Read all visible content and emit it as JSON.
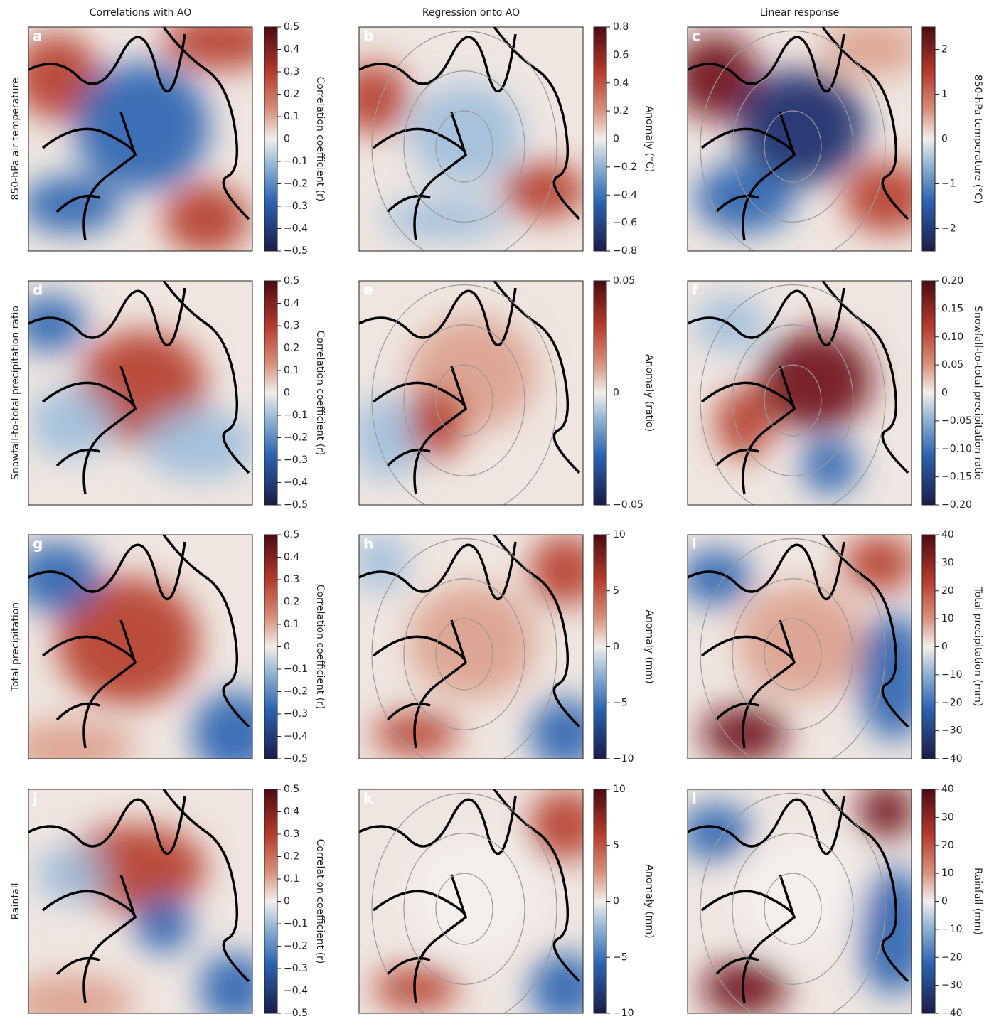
{
  "column_titles": [
    "Correlations with AO",
    "Regression onto AO",
    "Linear response"
  ],
  "row_labels": [
    "850-hPa air temperature",
    "Snowfall-to-total precipitation ratio",
    "Total precipitation",
    "Rainfall"
  ],
  "panels": [
    {
      "letter": "a",
      "colorbar": {
        "label": "Correlation coefficient (r)",
        "lim": [
          -0.5,
          0.5
        ],
        "ticks": [
          {
            "value": -0.5,
            "label": "−0.5"
          },
          {
            "value": -0.4,
            "label": "−0.4"
          },
          {
            "value": -0.3,
            "label": "−0.3"
          },
          {
            "value": -0.2,
            "label": "−0.2"
          },
          {
            "value": -0.1,
            "label": "−0.1"
          },
          0,
          0.1,
          0.2,
          0.3,
          0.4,
          0.5
        ]
      }
    },
    {
      "letter": "b",
      "colorbar": {
        "label": "Anomaly (°C)",
        "lim": [
          -0.8,
          0.8
        ],
        "ticks": [
          {
            "value": -0.8,
            "label": "−0.8"
          },
          {
            "value": -0.6,
            "label": "−0.6"
          },
          {
            "value": -0.4,
            "label": "−0.4"
          },
          {
            "value": -0.2,
            "label": "−0.2"
          },
          0,
          0.2,
          0.4,
          0.6,
          0.8
        ]
      }
    },
    {
      "letter": "c",
      "colorbar": {
        "label": "850-hPa temperature (°C)",
        "lim": [
          -2.5,
          2.5
        ],
        "ticks": [
          {
            "value": -2,
            "label": "−2"
          },
          {
            "value": -1,
            "label": "−1"
          },
          0,
          1,
          2
        ]
      }
    },
    {
      "letter": "d",
      "colorbar": {
        "label": "Correlation coefficient (r)",
        "lim": [
          -0.5,
          0.5
        ],
        "ticks": [
          {
            "value": -0.5,
            "label": "−0.5"
          },
          {
            "value": -0.4,
            "label": "−0.4"
          },
          {
            "value": -0.3,
            "label": "−0.3"
          },
          {
            "value": -0.2,
            "label": "−0.2"
          },
          {
            "value": -0.1,
            "label": "−0.1"
          },
          0,
          0.1,
          0.2,
          0.3,
          0.4,
          0.5
        ]
      }
    },
    {
      "letter": "e",
      "colorbar": {
        "label": "Anomaly (ratio)",
        "lim": [
          -0.05,
          0.05
        ],
        "ticks": [
          {
            "value": -0.05,
            "label": "−0.05"
          },
          0,
          0.05
        ]
      }
    },
    {
      "letter": "f",
      "colorbar": {
        "label": "Snowfall-to-total precipitation ratio",
        "lim": [
          -0.2,
          0.2
        ],
        "ticks": [
          {
            "value": -0.2,
            "label": "−0.20"
          },
          {
            "value": -0.15,
            "label": "−0.15"
          },
          {
            "value": -0.1,
            "label": "−0.10"
          },
          {
            "value": -0.05,
            "label": "−0.05"
          },
          0,
          0.05,
          {
            "value": 0.1,
            "label": "0.10"
          },
          0.15,
          {
            "value": 0.2,
            "label": "0.20"
          }
        ]
      }
    },
    {
      "letter": "g",
      "colorbar": {
        "label": "Correlation coefficient (r)",
        "lim": [
          -0.5,
          0.5
        ],
        "ticks": [
          {
            "value": -0.5,
            "label": "−0.5"
          },
          {
            "value": -0.4,
            "label": "−0.4"
          },
          {
            "value": -0.3,
            "label": "−0.3"
          },
          {
            "value": -0.2,
            "label": "−0.2"
          },
          {
            "value": -0.1,
            "label": "−0.1"
          },
          0,
          0.1,
          0.2,
          0.3,
          0.4,
          0.5
        ]
      }
    },
    {
      "letter": "h",
      "colorbar": {
        "label": "Anomaly (mm)",
        "lim": [
          -10,
          10
        ],
        "ticks": [
          {
            "value": -10,
            "label": "−10"
          },
          {
            "value": -5,
            "label": "−5"
          },
          0,
          5,
          10
        ]
      }
    },
    {
      "letter": "i",
      "colorbar": {
        "label": "Total precipitation (mm)",
        "lim": [
          -40,
          40
        ],
        "ticks": [
          {
            "value": -40,
            "label": "−40"
          },
          {
            "value": -30,
            "label": "−30"
          },
          {
            "value": -20,
            "label": "−20"
          },
          {
            "value": -10,
            "label": "−10"
          },
          0,
          10,
          20,
          30,
          40
        ]
      }
    },
    {
      "letter": "j",
      "colorbar": {
        "label": "Correlation coefficient (r)",
        "lim": [
          -0.5,
          0.5
        ],
        "ticks": [
          {
            "value": -0.5,
            "label": "−0.5"
          },
          {
            "value": -0.4,
            "label": "−0.4"
          },
          {
            "value": -0.3,
            "label": "−0.3"
          },
          {
            "value": -0.2,
            "label": "−0.2"
          },
          {
            "value": -0.1,
            "label": "−0.1"
          },
          0,
          0.1,
          0.2,
          0.3,
          0.4,
          0.5
        ]
      }
    },
    {
      "letter": "k",
      "colorbar": {
        "label": "Anomaly (mm)",
        "lim": [
          -10,
          10
        ],
        "ticks": [
          {
            "value": -10,
            "label": "−10"
          },
          {
            "value": -5,
            "label": "−5"
          },
          0,
          5,
          10
        ]
      }
    },
    {
      "letter": "l",
      "colorbar": {
        "label": "Rainfall (mm)",
        "lim": [
          -40,
          40
        ],
        "ticks": [
          {
            "value": -40,
            "label": "−40"
          },
          {
            "value": -30,
            "label": "−30"
          },
          {
            "value": -20,
            "label": "−20"
          },
          {
            "value": -10,
            "label": "−10"
          },
          0,
          10,
          20,
          30,
          40
        ]
      }
    }
  ]
}
